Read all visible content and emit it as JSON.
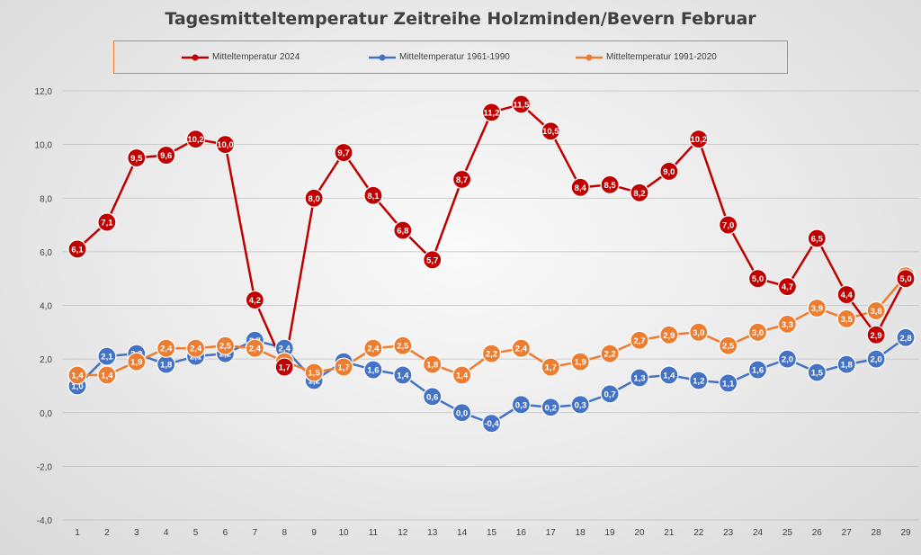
{
  "colors": {
    "series_2024": "#c00000",
    "series_1961_1990": "#4472c4",
    "series_1991_2020": "#ed7d31",
    "grid": "#bfbfbf",
    "axis_text": "#404040"
  },
  "chart_data": {
    "type": "line",
    "title": "Tagesmitteltemperatur Zeitreihe Holzminden/Bevern Februar",
    "xlabel": "",
    "ylabel": "",
    "ylim": [
      -4,
      12
    ],
    "yticks": [
      "12,0",
      "10,0",
      "8,0",
      "6,0",
      "4,0",
      "2,0",
      "0,0",
      "-2,0",
      "-4,0"
    ],
    "ytick_values": [
      12,
      10,
      8,
      6,
      4,
      2,
      0,
      -2,
      -4
    ],
    "categories": [
      "1",
      "2",
      "3",
      "4",
      "5",
      "6",
      "7",
      "8",
      "9",
      "10",
      "11",
      "12",
      "13",
      "14",
      "15",
      "16",
      "17",
      "18",
      "19",
      "20",
      "21",
      "22",
      "23",
      "24",
      "25",
      "26",
      "27",
      "28",
      "29"
    ],
    "legend_position": "top",
    "series": [
      {
        "name": "Mitteltemperatur 2024",
        "color_key": "series_2024",
        "values": [
          6.1,
          7.1,
          9.5,
          9.6,
          10.2,
          10.0,
          4.2,
          1.7,
          8.0,
          9.7,
          8.1,
          6.8,
          5.7,
          8.7,
          11.2,
          11.5,
          10.5,
          8.4,
          8.5,
          8.2,
          9.0,
          10.2,
          7.0,
          5.0,
          4.7,
          6.5,
          4.4,
          2.9,
          5.0
        ],
        "labels": [
          "6,1",
          "7,1",
          "9,5",
          "9,6",
          "10,2",
          "10,0",
          "4,2",
          "1,7",
          "8,0",
          "9,7",
          "8,1",
          "6,8",
          "5,7",
          "8,7",
          "11,2",
          "11,5",
          "10,5",
          "8,4",
          "8,5",
          "8,2",
          "9,0",
          "10,2",
          "7,0",
          "5,0",
          "4,7",
          "6,5",
          "4,4",
          "2,9",
          "5,0"
        ]
      },
      {
        "name": "Mitteltemperatur 1961-1990",
        "color_key": "series_1961_1990",
        "values": [
          1.0,
          2.1,
          2.2,
          1.8,
          2.1,
          2.2,
          2.7,
          2.4,
          1.2,
          1.9,
          1.6,
          1.4,
          0.6,
          0.0,
          -0.4,
          0.3,
          0.2,
          0.3,
          0.7,
          1.3,
          1.4,
          1.2,
          1.1,
          1.6,
          2.0,
          1.5,
          1.8,
          2.0,
          2.8
        ],
        "labels": [
          "1,0",
          "2,1",
          "2,2",
          "1,8",
          "2,1",
          "2,2",
          "2,7",
          "2,4",
          "1,2",
          "1,9",
          "1,6",
          "1,4",
          "0,6",
          "0,0",
          "-0,4",
          "0,3",
          "0,2",
          "0,3",
          "0,7",
          "1,3",
          "1,4",
          "1,2",
          "1,1",
          "1,6",
          "2,0",
          "1,5",
          "1,8",
          "2,0",
          "2,8"
        ]
      },
      {
        "name": "Mitteltemperatur 1991-2020",
        "color_key": "series_1991_2020",
        "values": [
          1.4,
          1.4,
          1.9,
          2.4,
          2.4,
          2.5,
          2.4,
          1.9,
          1.5,
          1.7,
          2.4,
          2.5,
          1.8,
          1.4,
          2.2,
          2.4,
          1.7,
          1.9,
          2.2,
          2.7,
          2.9,
          3.0,
          2.5,
          3.0,
          3.3,
          3.9,
          3.5,
          3.8,
          5.1
        ],
        "labels": [
          "1,4",
          "1,4",
          "1,9",
          "2,4",
          "2,4",
          "2,5",
          "2,4",
          "1,9",
          "1,5",
          "1,7",
          "2,4",
          "2,5",
          "1,8",
          "1,4",
          "2,2",
          "2,4",
          "1,7",
          "1,9",
          "2,2",
          "2,7",
          "2,9",
          "3,0",
          "2,5",
          "3,0",
          "3,3",
          "3,9",
          "3,5",
          "3,8",
          "5,1"
        ]
      }
    ]
  }
}
